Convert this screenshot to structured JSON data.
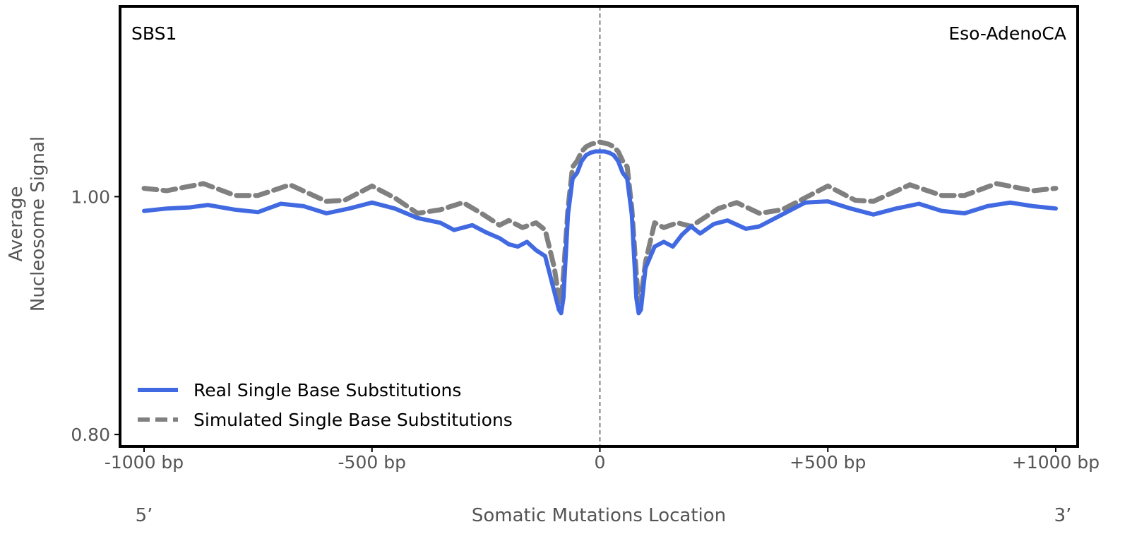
{
  "chart_data": {
    "type": "line",
    "top_left_label": "SBS1",
    "top_right_label": "Eso-AdenoCA",
    "xlabel": "Somatic Mutations Location",
    "ylabel_lines": [
      "Average",
      "Nucleosome Signal"
    ],
    "x_end_labels": {
      "left": "5’",
      "right": "3’"
    },
    "xlim": [
      -1000,
      1000
    ],
    "ylim": [
      0.79,
      1.16
    ],
    "x_ticks": [
      {
        "value": -1000,
        "label": "-1000 bp"
      },
      {
        "value": -500,
        "label": "-500 bp"
      },
      {
        "value": 0,
        "label": "0"
      },
      {
        "value": 500,
        "label": "+500 bp"
      },
      {
        "value": 1000,
        "label": "+1000 bp"
      }
    ],
    "y_ticks": [
      {
        "value": 0.8,
        "label": "0.80"
      },
      {
        "value": 1.0,
        "label": "1.00"
      }
    ],
    "vline_x": 0,
    "legend_position": "lower-left",
    "series": [
      {
        "name": "Real Single Base Substitutions",
        "color": "#4169e1",
        "style": "solid",
        "x": [
          -1000,
          -950,
          -900,
          -860,
          -800,
          -750,
          -700,
          -650,
          -600,
          -550,
          -500,
          -450,
          -400,
          -350,
          -320,
          -280,
          -250,
          -220,
          -200,
          -180,
          -160,
          -140,
          -120,
          -100,
          -90,
          -85,
          -80,
          -70,
          -60,
          -50,
          -40,
          -30,
          -20,
          -10,
          0,
          10,
          20,
          30,
          40,
          50,
          60,
          70,
          80,
          85,
          90,
          100,
          120,
          140,
          160,
          180,
          200,
          220,
          250,
          280,
          320,
          350,
          400,
          450,
          500,
          550,
          600,
          650,
          700,
          750,
          800,
          850,
          900,
          950,
          1000
        ],
        "values": [
          0.988,
          0.99,
          0.991,
          0.993,
          0.989,
          0.987,
          0.994,
          0.992,
          0.986,
          0.99,
          0.995,
          0.99,
          0.982,
          0.978,
          0.972,
          0.976,
          0.97,
          0.965,
          0.96,
          0.958,
          0.962,
          0.955,
          0.95,
          0.92,
          0.905,
          0.902,
          0.915,
          0.985,
          1.015,
          1.02,
          1.03,
          1.035,
          1.037,
          1.038,
          1.038,
          1.038,
          1.037,
          1.035,
          1.03,
          1.02,
          1.015,
          0.985,
          0.915,
          0.902,
          0.905,
          0.94,
          0.958,
          0.962,
          0.958,
          0.968,
          0.975,
          0.969,
          0.977,
          0.98,
          0.973,
          0.975,
          0.985,
          0.995,
          0.996,
          0.99,
          0.985,
          0.99,
          0.994,
          0.988,
          0.986,
          0.992,
          0.995,
          0.992,
          0.99
        ]
      },
      {
        "name": "Simulated Single Base Substitutions",
        "color": "#808080",
        "style": "dashed",
        "x": [
          -1000,
          -950,
          -870,
          -800,
          -750,
          -680,
          -600,
          -560,
          -500,
          -450,
          -400,
          -350,
          -300,
          -260,
          -220,
          -200,
          -170,
          -140,
          -120,
          -100,
          -90,
          -85,
          -80,
          -70,
          -60,
          -50,
          -40,
          -30,
          -20,
          -10,
          0,
          10,
          20,
          30,
          40,
          50,
          60,
          70,
          80,
          85,
          90,
          100,
          120,
          140,
          170,
          200,
          220,
          260,
          300,
          350,
          400,
          450,
          500,
          560,
          600,
          680,
          750,
          800,
          870,
          950,
          1000
        ],
        "values": [
          1.007,
          1.005,
          1.011,
          1.001,
          1.001,
          1.01,
          0.996,
          0.997,
          1.009,
          0.999,
          0.986,
          0.989,
          0.995,
          0.986,
          0.976,
          0.98,
          0.974,
          0.978,
          0.972,
          0.94,
          0.915,
          0.91,
          0.935,
          0.99,
          1.025,
          1.03,
          1.038,
          1.042,
          1.044,
          1.045,
          1.046,
          1.045,
          1.044,
          1.042,
          1.038,
          1.03,
          1.025,
          0.99,
          0.935,
          0.91,
          0.915,
          0.945,
          0.978,
          0.974,
          0.978,
          0.975,
          0.98,
          0.99,
          0.995,
          0.986,
          0.989,
          0.999,
          1.009,
          0.997,
          0.996,
          1.01,
          1.001,
          1.001,
          1.011,
          1.005,
          1.007
        ]
      }
    ]
  }
}
